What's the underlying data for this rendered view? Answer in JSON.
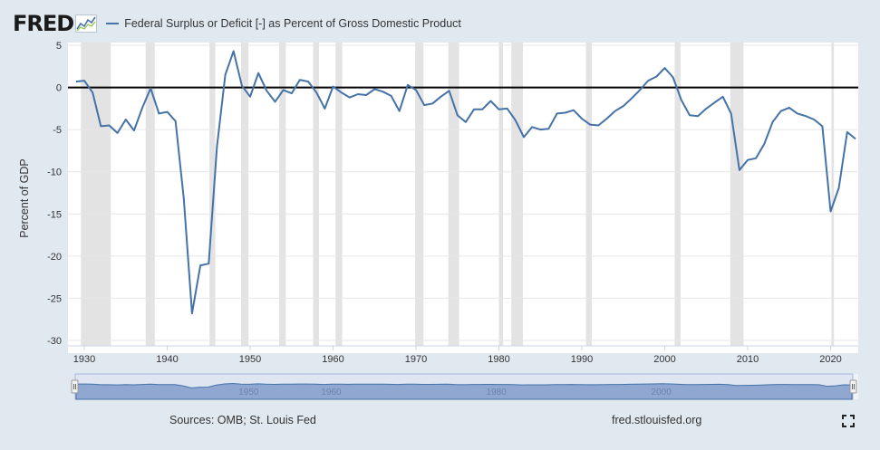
{
  "header": {
    "logo": "FRED",
    "legend_label": "Federal Surplus or Deficit [-] as Percent of Gross Domestic Product"
  },
  "footer": {
    "sources": "Sources: OMB; St. Louis Fed",
    "url": "fred.stlouisfed.org"
  },
  "icons": {
    "logo_graph": "fred-graph-icon",
    "fullscreen": "fullscreen-icon"
  },
  "colors": {
    "series": "#4572a7",
    "recession": "#e3e3e3",
    "zero_line": "#000000",
    "background": "#e1e9f0",
    "navigator_fill": "#8fa7d1"
  },
  "navigator": {
    "labels": [
      "1950",
      "1960",
      "1980",
      "2000"
    ]
  },
  "chart_data": {
    "type": "line",
    "title": "Federal Surplus or Deficit [-] as Percent of Gross Domestic Product",
    "xlabel": "",
    "ylabel": "Percent of GDP",
    "xlim": [
      1929,
      2023
    ],
    "ylim": [
      -30,
      5
    ],
    "x_ticks": [
      1930,
      1940,
      1950,
      1960,
      1970,
      1980,
      1990,
      2000,
      2010,
      2020
    ],
    "y_ticks": [
      5,
      0,
      -5,
      -10,
      -15,
      -20,
      -25,
      -30
    ],
    "zero_line": true,
    "grid": "horizontal",
    "recessions": [
      [
        1929.6,
        1933.2
      ],
      [
        1937.4,
        1938.5
      ],
      [
        1945.1,
        1945.8
      ],
      [
        1948.9,
        1949.8
      ],
      [
        1953.5,
        1954.3
      ],
      [
        1957.6,
        1958.3
      ],
      [
        1960.3,
        1961.1
      ],
      [
        1969.9,
        1970.9
      ],
      [
        1973.9,
        1975.2
      ],
      [
        1980.0,
        1980.5
      ],
      [
        1981.5,
        1982.9
      ],
      [
        1990.5,
        1991.2
      ],
      [
        2001.2,
        2001.9
      ],
      [
        2007.9,
        2009.5
      ],
      [
        2020.1,
        2020.4
      ]
    ],
    "series": [
      {
        "name": "Federal Surplus or Deficit [-] as Percent of Gross Domestic Product",
        "x": [
          1929,
          1930,
          1931,
          1932,
          1933,
          1934,
          1935,
          1936,
          1937,
          1938,
          1939,
          1940,
          1941,
          1942,
          1943,
          1944,
          1945,
          1946,
          1947,
          1948,
          1949,
          1950,
          1951,
          1952,
          1953,
          1954,
          1955,
          1956,
          1957,
          1958,
          1959,
          1960,
          1961,
          1962,
          1963,
          1964,
          1965,
          1966,
          1967,
          1968,
          1969,
          1970,
          1971,
          1972,
          1973,
          1974,
          1975,
          1976,
          1977,
          1978,
          1979,
          1980,
          1981,
          1982,
          1983,
          1984,
          1985,
          1986,
          1987,
          1988,
          1989,
          1990,
          1991,
          1992,
          1993,
          1994,
          1995,
          1996,
          1997,
          1998,
          1999,
          2000,
          2001,
          2002,
          2003,
          2004,
          2005,
          2006,
          2007,
          2008,
          2009,
          2010,
          2011,
          2012,
          2013,
          2014,
          2015,
          2016,
          2017,
          2018,
          2019,
          2020,
          2021,
          2022,
          2023
        ],
        "values": [
          0.7,
          0.8,
          -0.6,
          -4.6,
          -4.5,
          -5.4,
          -3.8,
          -5.1,
          -2.4,
          -0.1,
          -3.1,
          -2.9,
          -4.0,
          -13.2,
          -26.8,
          -21.1,
          -20.9,
          -7.0,
          1.5,
          4.3,
          0.2,
          -1.1,
          1.7,
          -0.4,
          -1.7,
          -0.3,
          -0.7,
          0.9,
          0.7,
          -0.6,
          -2.5,
          0.1,
          -0.6,
          -1.2,
          -0.8,
          -0.9,
          -0.2,
          -0.5,
          -1.0,
          -2.8,
          0.3,
          -0.3,
          -2.1,
          -1.9,
          -1.1,
          -0.4,
          -3.3,
          -4.1,
          -2.6,
          -2.6,
          -1.6,
          -2.6,
          -2.5,
          -3.9,
          -5.9,
          -4.7,
          -5.0,
          -4.9,
          -3.1,
          -3.0,
          -2.7,
          -3.7,
          -4.4,
          -4.5,
          -3.7,
          -2.8,
          -2.2,
          -1.3,
          -0.3,
          0.8,
          1.3,
          2.3,
          1.2,
          -1.5,
          -3.3,
          -3.4,
          -2.5,
          -1.8,
          -1.1,
          -3.1,
          -9.8,
          -8.6,
          -8.4,
          -6.7,
          -4.1,
          -2.8,
          -2.4,
          -3.1,
          -3.4,
          -3.8,
          -4.6,
          -14.7,
          -11.9,
          -5.3,
          -6.1
        ]
      }
    ]
  }
}
